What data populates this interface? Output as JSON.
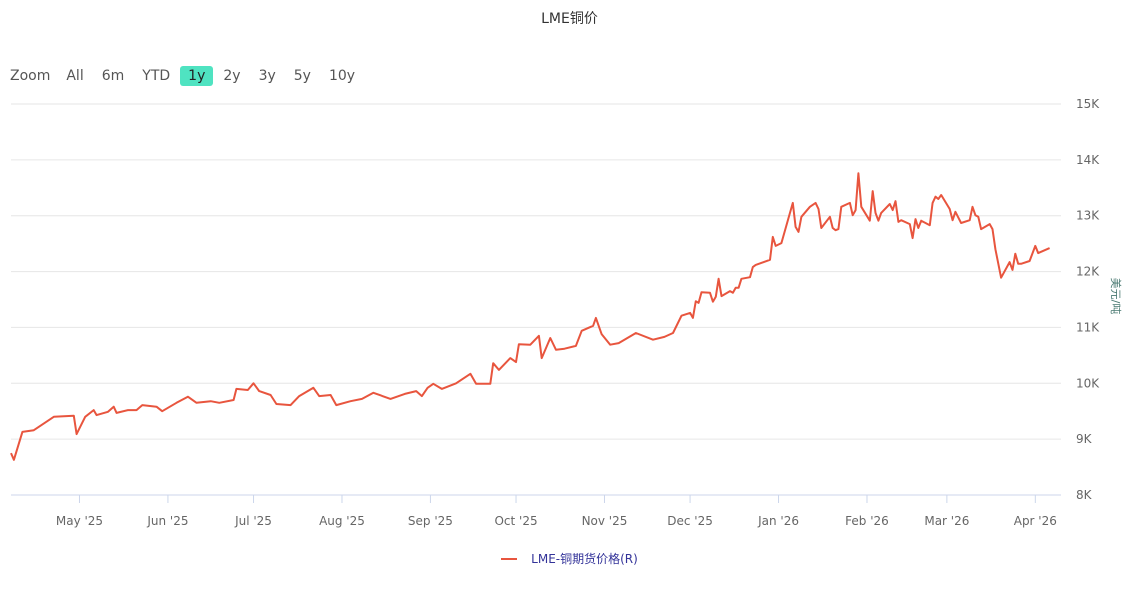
{
  "chart_data": {
    "type": "line",
    "title": "LME铜价",
    "ylabel": "美元/吨",
    "ylim": [
      8000,
      15000
    ],
    "xlim": [
      "2025-04-07",
      "2026-04-10"
    ],
    "yticks": [
      8000,
      9000,
      10000,
      11000,
      12000,
      13000,
      14000,
      15000
    ],
    "ytick_labels": [
      "8K",
      "9K",
      "10K",
      "11K",
      "12K",
      "13K",
      "14K",
      "15K"
    ],
    "xticks": [
      "2025-05-01",
      "2025-06-01",
      "2025-07-01",
      "2025-08-01",
      "2025-09-01",
      "2025-10-01",
      "2025-11-01",
      "2025-12-01",
      "2026-01-01",
      "2026-02-01",
      "2026-03-01",
      "2026-04-01"
    ],
    "xtick_labels": [
      "May '25",
      "Jun '25",
      "Jul '25",
      "Aug '25",
      "Sep '25",
      "Oct '25",
      "Nov '25",
      "Dec '25",
      "Jan '26",
      "Feb '26",
      "Mar '26",
      "Apr '26"
    ],
    "grid": true,
    "yaxis_side": "right",
    "legend_placement": "bottom",
    "series": [
      {
        "name": "LME-铜期货价格(R)",
        "color": "#e8553e",
        "points": [
          [
            "2025-04-07",
            8750
          ],
          [
            "2025-04-08",
            8630
          ],
          [
            "2025-04-11",
            9130
          ],
          [
            "2025-04-15",
            9160
          ],
          [
            "2025-04-22",
            9400
          ],
          [
            "2025-04-29",
            9420
          ],
          [
            "2025-04-30",
            9090
          ],
          [
            "2025-05-03",
            9400
          ],
          [
            "2025-05-06",
            9520
          ],
          [
            "2025-05-07",
            9430
          ],
          [
            "2025-05-11",
            9490
          ],
          [
            "2025-05-13",
            9580
          ],
          [
            "2025-05-14",
            9470
          ],
          [
            "2025-05-18",
            9520
          ],
          [
            "2025-05-21",
            9520
          ],
          [
            "2025-05-23",
            9610
          ],
          [
            "2025-05-28",
            9580
          ],
          [
            "2025-05-30",
            9500
          ],
          [
            "2025-06-04",
            9650
          ],
          [
            "2025-06-08",
            9760
          ],
          [
            "2025-06-11",
            9650
          ],
          [
            "2025-06-16",
            9680
          ],
          [
            "2025-06-19",
            9650
          ],
          [
            "2025-06-24",
            9700
          ],
          [
            "2025-06-25",
            9900
          ],
          [
            "2025-06-29",
            9880
          ],
          [
            "2025-07-01",
            10000
          ],
          [
            "2025-07-03",
            9860
          ],
          [
            "2025-07-07",
            9790
          ],
          [
            "2025-07-09",
            9630
          ],
          [
            "2025-07-14",
            9610
          ],
          [
            "2025-07-17",
            9770
          ],
          [
            "2025-07-22",
            9920
          ],
          [
            "2025-07-24",
            9770
          ],
          [
            "2025-07-28",
            9790
          ],
          [
            "2025-07-30",
            9610
          ],
          [
            "2025-08-04",
            9680
          ],
          [
            "2025-08-08",
            9720
          ],
          [
            "2025-08-12",
            9830
          ],
          [
            "2025-08-18",
            9720
          ],
          [
            "2025-08-23",
            9810
          ],
          [
            "2025-08-27",
            9860
          ],
          [
            "2025-08-29",
            9770
          ],
          [
            "2025-08-31",
            9920
          ],
          [
            "2025-09-02",
            9990
          ],
          [
            "2025-09-05",
            9900
          ],
          [
            "2025-09-10",
            10000
          ],
          [
            "2025-09-15",
            10170
          ],
          [
            "2025-09-17",
            9990
          ],
          [
            "2025-09-22",
            9990
          ],
          [
            "2025-09-23",
            10360
          ],
          [
            "2025-09-25",
            10240
          ],
          [
            "2025-09-29",
            10450
          ],
          [
            "2025-10-01",
            10380
          ],
          [
            "2025-10-02",
            10700
          ],
          [
            "2025-10-06",
            10690
          ],
          [
            "2025-10-09",
            10850
          ],
          [
            "2025-10-10",
            10450
          ],
          [
            "2025-10-13",
            10810
          ],
          [
            "2025-10-15",
            10600
          ],
          [
            "2025-10-18",
            10620
          ],
          [
            "2025-10-22",
            10670
          ],
          [
            "2025-10-24",
            10940
          ],
          [
            "2025-10-28",
            11030
          ],
          [
            "2025-10-29",
            11170
          ],
          [
            "2025-10-31",
            10880
          ],
          [
            "2025-11-03",
            10690
          ],
          [
            "2025-11-06",
            10720
          ],
          [
            "2025-11-12",
            10900
          ],
          [
            "2025-11-18",
            10780
          ],
          [
            "2025-11-22",
            10830
          ],
          [
            "2025-11-25",
            10900
          ],
          [
            "2025-11-28",
            11210
          ],
          [
            "2025-12-01",
            11260
          ],
          [
            "2025-12-02",
            11170
          ],
          [
            "2025-12-03",
            11470
          ],
          [
            "2025-12-04",
            11440
          ],
          [
            "2025-12-05",
            11630
          ],
          [
            "2025-12-08",
            11620
          ],
          [
            "2025-12-09",
            11460
          ],
          [
            "2025-12-10",
            11550
          ],
          [
            "2025-12-11",
            11870
          ],
          [
            "2025-12-12",
            11560
          ],
          [
            "2025-12-15",
            11650
          ],
          [
            "2025-12-16",
            11620
          ],
          [
            "2025-12-17",
            11710
          ],
          [
            "2025-12-18",
            11710
          ],
          [
            "2025-12-19",
            11870
          ],
          [
            "2025-12-22",
            11900
          ],
          [
            "2025-12-23",
            12080
          ],
          [
            "2025-12-24",
            12120
          ],
          [
            "2025-12-29",
            12210
          ],
          [
            "2025-12-30",
            12620
          ],
          [
            "2025-12-31",
            12460
          ],
          [
            "2026-01-02",
            12510
          ],
          [
            "2026-01-06",
            13230
          ],
          [
            "2026-01-07",
            12800
          ],
          [
            "2026-01-08",
            12710
          ],
          [
            "2026-01-09",
            12980
          ],
          [
            "2026-01-12",
            13160
          ],
          [
            "2026-01-14",
            13230
          ],
          [
            "2026-01-15",
            13120
          ],
          [
            "2026-01-16",
            12780
          ],
          [
            "2026-01-19",
            12980
          ],
          [
            "2026-01-20",
            12780
          ],
          [
            "2026-01-21",
            12740
          ],
          [
            "2026-01-22",
            12760
          ],
          [
            "2026-01-23",
            13160
          ],
          [
            "2026-01-26",
            13230
          ],
          [
            "2026-01-27",
            13010
          ],
          [
            "2026-01-28",
            13100
          ],
          [
            "2026-01-29",
            13760
          ],
          [
            "2026-01-30",
            13160
          ],
          [
            "2026-02-02",
            12910
          ],
          [
            "2026-02-03",
            13440
          ],
          [
            "2026-02-04",
            13050
          ],
          [
            "2026-02-05",
            12910
          ],
          [
            "2026-02-06",
            13050
          ],
          [
            "2026-02-09",
            13210
          ],
          [
            "2026-02-10",
            13100
          ],
          [
            "2026-02-11",
            13260
          ],
          [
            "2026-02-12",
            12890
          ],
          [
            "2026-02-13",
            12920
          ],
          [
            "2026-02-16",
            12850
          ],
          [
            "2026-02-17",
            12600
          ],
          [
            "2026-02-18",
            12940
          ],
          [
            "2026-02-19",
            12780
          ],
          [
            "2026-02-20",
            12910
          ],
          [
            "2026-02-23",
            12830
          ],
          [
            "2026-02-24",
            13230
          ],
          [
            "2026-02-25",
            13340
          ],
          [
            "2026-02-26",
            13300
          ],
          [
            "2026-02-27",
            13370
          ],
          [
            "2026-03-02",
            13120
          ],
          [
            "2026-03-03",
            12920
          ],
          [
            "2026-03-04",
            13070
          ],
          [
            "2026-03-06",
            12870
          ],
          [
            "2026-03-09",
            12920
          ],
          [
            "2026-03-10",
            13160
          ],
          [
            "2026-03-11",
            13010
          ],
          [
            "2026-03-12",
            12980
          ],
          [
            "2026-03-13",
            12760
          ],
          [
            "2026-03-16",
            12850
          ],
          [
            "2026-03-17",
            12760
          ],
          [
            "2026-03-18",
            12400
          ],
          [
            "2026-03-20",
            11890
          ],
          [
            "2026-03-23",
            12170
          ],
          [
            "2026-03-24",
            12030
          ],
          [
            "2026-03-25",
            12320
          ],
          [
            "2026-03-26",
            12140
          ],
          [
            "2026-03-27",
            12140
          ],
          [
            "2026-03-30",
            12190
          ],
          [
            "2026-04-01",
            12460
          ],
          [
            "2026-04-02",
            12330
          ],
          [
            "2026-04-06",
            12420
          ]
        ]
      }
    ]
  },
  "range_selector": {
    "label": "Zoom",
    "buttons": [
      "All",
      "6m",
      "YTD",
      "1y",
      "2y",
      "3y",
      "5y",
      "10y"
    ],
    "selected": "1y",
    "active_color": "#4fe3c1"
  }
}
